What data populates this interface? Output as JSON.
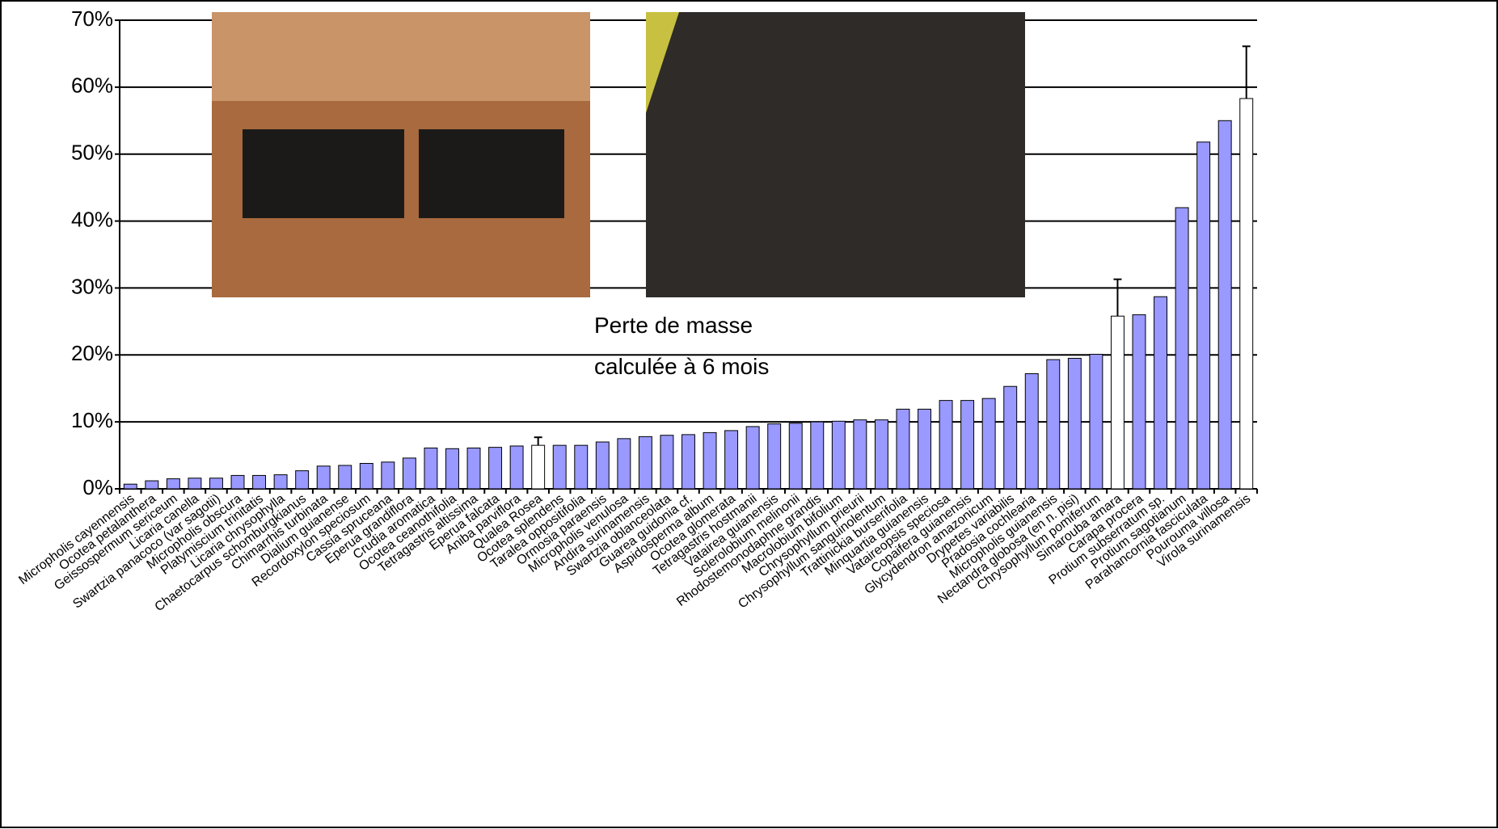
{
  "chart_data": {
    "type": "bar",
    "annotations": [
      "Perte de masse",
      "calculée à 6 mois"
    ],
    "categories": [
      "Micropholis cayennensis",
      "Ocotea petalanthera",
      "Geissospermum sericeum",
      "Licaria canella",
      "Swartzia panacoco (var sagotii)",
      "Micropholis obscura",
      "Platymiscium trinitatis",
      "Licaria chrysophylla",
      "Chaetocarpus schomburgkianus",
      "Chimarrhis turbinata",
      "Dialium guianense",
      "Recordoxylon speciosum",
      "Cassia spruceana",
      "Eperua grandiflora",
      "Crudia aromatica",
      "Ocotea ceanothifolia",
      "Tetragastris altissima",
      "Eperua falcata",
      "Aniba parviflora",
      "Qualea Rosea",
      "Ocotea splendens",
      "Taralea oppositifolia",
      "Ormosia paraensis",
      "Micropholis venulosa",
      "Andira surinamensis",
      "Swartzia oblanceolata",
      "Guarea guidonia cf.",
      "Aspidosperma album",
      "Ocotea glomerata",
      "Tetragastris hostmanii",
      "Vatairea guianensis",
      "Sclerolobium melinonii",
      "Rhodostemonodaphne grandis",
      "Macrolobium bifolium",
      "Chrysophyllum prieurii",
      "Chrysophyllum sanguinolentum",
      "Trattinickia burserifolia",
      "Minquartia guianensis",
      "Vataireopsis speciosa",
      "Copaifera guianensis",
      "Glycydendron amazonicum",
      "Drypetes variabilis",
      "Pradosia cochlearia",
      "Micropholis guianensis",
      "Nectandra globosa (en n. pisi)",
      "Chrysophyllum pomiferum",
      "Simarouba amara",
      "Carapa procera",
      "Protium subserratum sp.",
      "Protium sagotianum",
      "Parahancornia fasciculata",
      "Pourouma villosa",
      "Virola surinamensis"
    ],
    "values": [
      0.7,
      1.2,
      1.5,
      1.6,
      1.6,
      2.0,
      2.0,
      2.1,
      2.7,
      3.4,
      3.5,
      3.8,
      4.0,
      4.6,
      6.1,
      6.0,
      6.1,
      6.2,
      6.4,
      6.5,
      6.5,
      6.5,
      7.0,
      7.5,
      7.8,
      8.0,
      8.1,
      8.4,
      8.7,
      9.3,
      9.7,
      9.8,
      10.0,
      10.1,
      10.3,
      10.3,
      11.9,
      11.9,
      13.2,
      13.2,
      13.5,
      15.3,
      17.2,
      19.3,
      19.5,
      20.1,
      25.8,
      26.0,
      28.7,
      42.0,
      51.8,
      55.0,
      58.3
    ],
    "errors": [
      null,
      null,
      null,
      null,
      null,
      null,
      null,
      null,
      null,
      null,
      null,
      null,
      null,
      null,
      null,
      null,
      null,
      null,
      null,
      1.2,
      null,
      null,
      null,
      null,
      null,
      null,
      null,
      null,
      null,
      null,
      null,
      null,
      null,
      null,
      null,
      null,
      null,
      null,
      null,
      null,
      null,
      null,
      null,
      null,
      null,
      null,
      5.5,
      null,
      null,
      null,
      null,
      null,
      7.8
    ],
    "color": "#9999ff",
    "error_bar_color": "#ffffff",
    "ylim": [
      0,
      70
    ],
    "yticks": [
      {
        "value": 0,
        "label": "0%"
      },
      {
        "value": 10,
        "label": "10%"
      },
      {
        "value": 20,
        "label": "20%"
      },
      {
        "value": 30,
        "label": "30%"
      },
      {
        "value": 40,
        "label": "40%"
      },
      {
        "value": 50,
        "label": "50%"
      },
      {
        "value": 60,
        "label": "60%"
      },
      {
        "value": 70,
        "label": "70%"
      }
    ],
    "grid": true
  }
}
